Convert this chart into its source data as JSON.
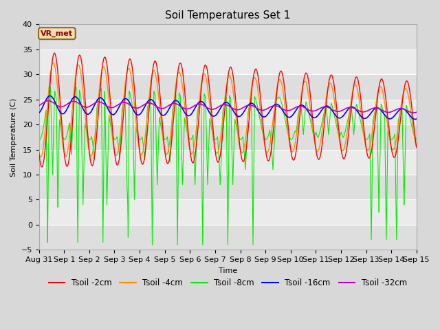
{
  "title": "Soil Temperatures Set 1",
  "xlabel": "Time",
  "ylabel": "Soil Temperature (C)",
  "ylim": [
    -5,
    40
  ],
  "label_box": "VR_met",
  "series_colors": [
    "#FF0000",
    "#FF8C00",
    "#00EE00",
    "#0000FF",
    "#BB00BB"
  ],
  "series_labels": [
    "Tsoil -2cm",
    "Tsoil -4cm",
    "Tsoil -8cm",
    "Tsoil -16cm",
    "Tsoil -32cm"
  ],
  "xtick_labels": [
    "Aug 31",
    "Sep 1",
    "Sep 2",
    "Sep 3",
    "Sep 4",
    "Sep 5",
    "Sep 6",
    "Sep 7",
    "Sep 8",
    "Sep 9",
    "Sep 10",
    "Sep 11",
    "Sep 12",
    "Sep 13",
    "Sep 14",
    "Sep 15"
  ],
  "bg_color": "#D8D8D8",
  "plot_bg_color": "#EBEBEB",
  "band_color": "#DEDEDE",
  "grid_color": "#FFFFFF",
  "title_fontsize": 11,
  "axis_fontsize": 8,
  "legend_fontsize": 8.5
}
